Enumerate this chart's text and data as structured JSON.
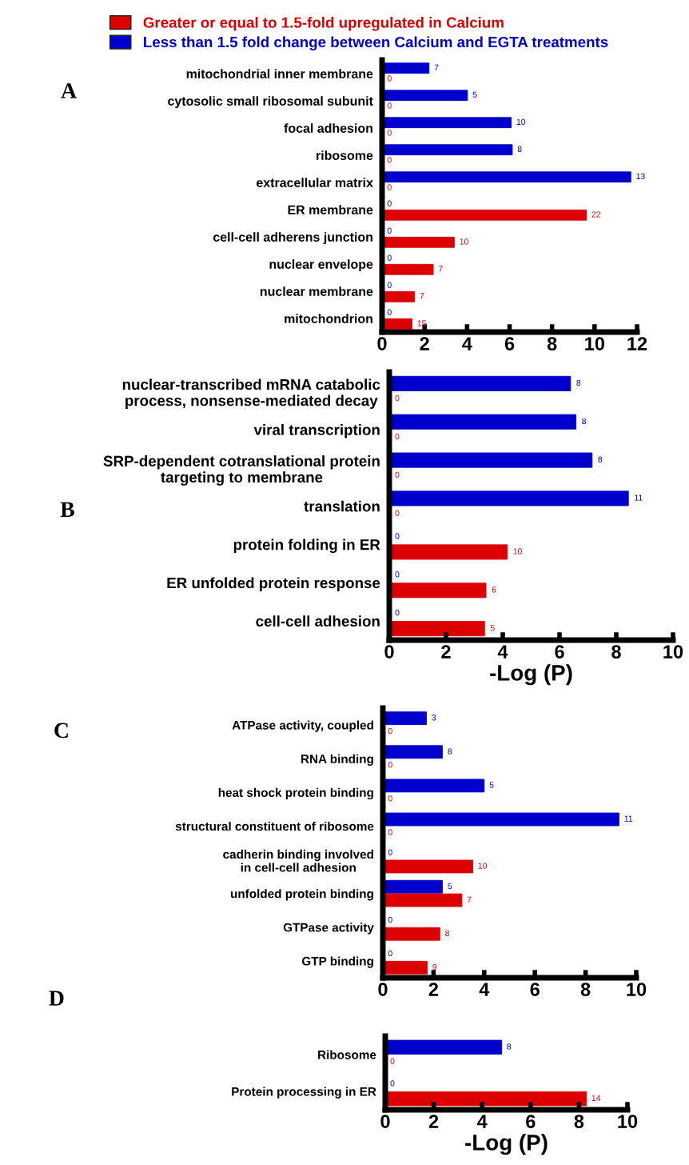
{
  "chart_data": [
    {
      "type": "bar",
      "orientation": "horizontal",
      "legend": "top",
      "categories": [
        "mitochondrial inner membrane",
        "cytosolic small ribosomal subunit",
        "focal adhesion",
        "ribosome",
        "extracellular matrix",
        "ER membrane",
        "cell-cell adherens junction",
        "nuclear envelope",
        "nuclear membrane",
        "mitochondrion"
      ],
      "series": [
        {
          "name": "Less than 1.5 fold change between Calcium and EGTA treatments",
          "color": "#0000cc",
          "values": [
            2.21,
            4.02,
            6.08,
            6.13,
            11.71,
            0,
            0,
            0,
            0,
            0
          ]
        },
        {
          "name": "Greater or equal to 1.5-fold upregulated in Calcium",
          "color": "#dd0000",
          "values": [
            0,
            0,
            0,
            0,
            0,
            9.62,
            3.4,
            2.41,
            1.53,
            1.41
          ]
        }
      ],
      "annotations": [
        "A",
        {
          "text": "7",
          "x": 2.21,
          "y": "mitochondrial inner membrane"
        },
        {
          "text": "0",
          "x": 0,
          "y": "mitochondrial inner membrane"
        },
        {
          "text": "5",
          "x": 4.02,
          "y": "cytosolic small ribosomal subunit"
        },
        {
          "text": "0",
          "x": 0,
          "y": "cytosolic small ribosomal subunit"
        },
        {
          "text": "10",
          "x": 6.08,
          "y": "focal adhesion"
        },
        {
          "text": "0",
          "x": 0,
          "y": "focal adhesion"
        },
        {
          "text": "8",
          "x": 6.13,
          "y": "ribosome"
        },
        {
          "text": "0",
          "x": 0,
          "y": "ribosome"
        },
        {
          "text": "13",
          "x": 11.71,
          "y": "extracellular matrix"
        },
        {
          "text": "0",
          "x": 0,
          "y": "extracellular matrix"
        },
        {
          "text": "0",
          "x": 0,
          "y": "ER membrane"
        },
        {
          "text": "22",
          "x": 9.62,
          "y": "ER membrane"
        },
        {
          "text": "0",
          "x": 0,
          "y": "cell-cell adherens junction"
        },
        {
          "text": "10",
          "x": 3.4,
          "y": "cell-cell adherens junction"
        },
        {
          "text": "0",
          "x": 0,
          "y": "nuclear envelope"
        },
        {
          "text": "7",
          "x": 2.41,
          "y": "nuclear envelope"
        },
        {
          "text": "0",
          "x": 0,
          "y": "nuclear membrane"
        },
        {
          "text": "7",
          "x": 1.53,
          "y": "nuclear membrane"
        },
        {
          "text": "0",
          "x": 0,
          "y": "mitochondrion"
        },
        {
          "text": "15",
          "x": 1.41,
          "y": "mitochondrion"
        }
      ],
      "xlim": [
        0,
        12
      ],
      "xticks": [
        0,
        2,
        4,
        6,
        8,
        10,
        12
      ]
    },
    {
      "type": "bar",
      "orientation": "horizontal",
      "xlabel": "-Log (P)",
      "categories": [
        "nuclear-transcribed mRNA catabolic\nprocess, nonsense-mediated decay",
        "viral transcription",
        "SRP-dependent cotranslational protein\ntargeting to membrane",
        "translation",
        "protein folding in ER",
        "ER unfolded protein response",
        "cell-cell adhesion"
      ],
      "series": [
        {
          "color": "#0000cc",
          "values": [
            6.39,
            6.58,
            7.15,
            8.43,
            0,
            0,
            0
          ]
        },
        {
          "color": "#dd0000",
          "values": [
            0,
            0,
            0,
            0,
            4.16,
            3.41,
            3.36
          ]
        }
      ],
      "annotations": [
        "B",
        {
          "text": "8",
          "x": 6.39,
          "y": "nuclear-transcribed mRNA catabolic\nprocess, nonsense-mediated decay"
        },
        {
          "text": "0",
          "x": 0,
          "y": "nuclear-transcribed mRNA catabolic\nprocess, nonsense-mediated decay"
        },
        {
          "text": "8",
          "x": 6.58,
          "y": "viral transcription"
        },
        {
          "text": "0",
          "x": 0,
          "y": "viral transcription"
        },
        {
          "text": "8",
          "x": 7.15,
          "y": "SRP-dependent cotranslational protein\ntargeting to membrane"
        },
        {
          "text": "0",
          "x": 0,
          "y": "SRP-dependent cotranslational protein\ntargeting to membrane"
        },
        {
          "text": "11",
          "x": 8.43,
          "y": "translation"
        },
        {
          "text": "0",
          "x": 0,
          "y": "translation"
        },
        {
          "text": "0",
          "x": 0,
          "y": "protein folding in ER"
        },
        {
          "text": "10",
          "x": 4.16,
          "y": "protein folding in ER"
        },
        {
          "text": "0",
          "x": 0,
          "y": "ER unfolded protein response"
        },
        {
          "text": "6",
          "x": 3.41,
          "y": "ER unfolded protein response"
        },
        {
          "text": "0",
          "x": 0,
          "y": "cell-cell adhesion"
        },
        {
          "text": "5",
          "x": 3.36,
          "y": "cell-cell adhesion"
        }
      ],
      "xlim": [
        0,
        10
      ],
      "xticks": [
        0,
        2,
        4,
        6,
        8,
        10
      ]
    },
    {
      "type": "bar",
      "orientation": "horizontal",
      "categories": [
        "ATPase activity, coupled",
        "RNA binding",
        "heat shock protein binding",
        "structural constituent of ribosome",
        "cadherin binding involved\nin cell-cell adhesion",
        "unfolded protein binding",
        "GTPase activity",
        "GTP binding"
      ],
      "series": [
        {
          "color": "#0000cc",
          "values": [
            1.72,
            2.35,
            4.0,
            9.32,
            0,
            2.35,
            0,
            0
          ]
        },
        {
          "color": "#dd0000",
          "values": [
            0,
            0,
            0,
            0,
            3.55,
            3.12,
            2.25,
            1.75
          ]
        }
      ],
      "annotations": [
        "C",
        {
          "text": "3",
          "x": 1.72,
          "y": "ATPase activity, coupled"
        },
        {
          "text": "0",
          "x": 0,
          "y": "ATPase activity, coupled"
        },
        {
          "text": "8",
          "x": 2.35,
          "y": "RNA binding"
        },
        {
          "text": "0",
          "x": 0,
          "y": "RNA binding"
        },
        {
          "text": "5",
          "x": 4.0,
          "y": "heat shock protein binding"
        },
        {
          "text": "0",
          "x": 0,
          "y": "heat shock protein binding"
        },
        {
          "text": "11",
          "x": 9.32,
          "y": "structural constituent of ribosome"
        },
        {
          "text": "0",
          "x": 0,
          "y": "structural constituent of ribosome"
        },
        {
          "text": "0",
          "x": 0,
          "y": "cadherin binding involved\nin cell-cell adhesion"
        },
        {
          "text": "10",
          "x": 3.55,
          "y": "cadherin binding involved\nin cell-cell adhesion"
        },
        {
          "text": "5",
          "x": 2.35,
          "y": "unfolded protein binding"
        },
        {
          "text": "7",
          "x": 3.12,
          "y": "unfolded protein binding"
        },
        {
          "text": "0",
          "x": 0,
          "y": "GTPase activity"
        },
        {
          "text": "8",
          "x": 2.25,
          "y": "GTPase activity"
        },
        {
          "text": "0",
          "x": 0,
          "y": "GTP binding"
        },
        {
          "text": "9",
          "x": 1.75,
          "y": "GTP binding"
        }
      ],
      "xlim": [
        0,
        10
      ],
      "xticks": [
        0,
        2,
        4,
        6,
        8,
        10
      ]
    },
    {
      "type": "bar",
      "orientation": "horizontal",
      "xlabel": "-Log (P)",
      "categories": [
        "Ribosome",
        "Protein processing in ER"
      ],
      "series": [
        {
          "color": "#0000cc",
          "values": [
            4.81,
            0
          ]
        },
        {
          "color": "#dd0000",
          "values": [
            0,
            8.31
          ]
        }
      ],
      "annotations": [
        "D",
        {
          "text": "8",
          "x": 4.81,
          "y": "Ribosome"
        },
        {
          "text": "0",
          "x": 0,
          "y": "Ribosome"
        },
        {
          "text": "0",
          "x": 0,
          "y": "Protein processing in ER"
        },
        {
          "text": "14",
          "x": 8.31,
          "y": "Protein processing in ER"
        }
      ],
      "xlim": [
        0,
        10
      ],
      "xticks": [
        0,
        2,
        4,
        6,
        8,
        10
      ]
    }
  ]
}
